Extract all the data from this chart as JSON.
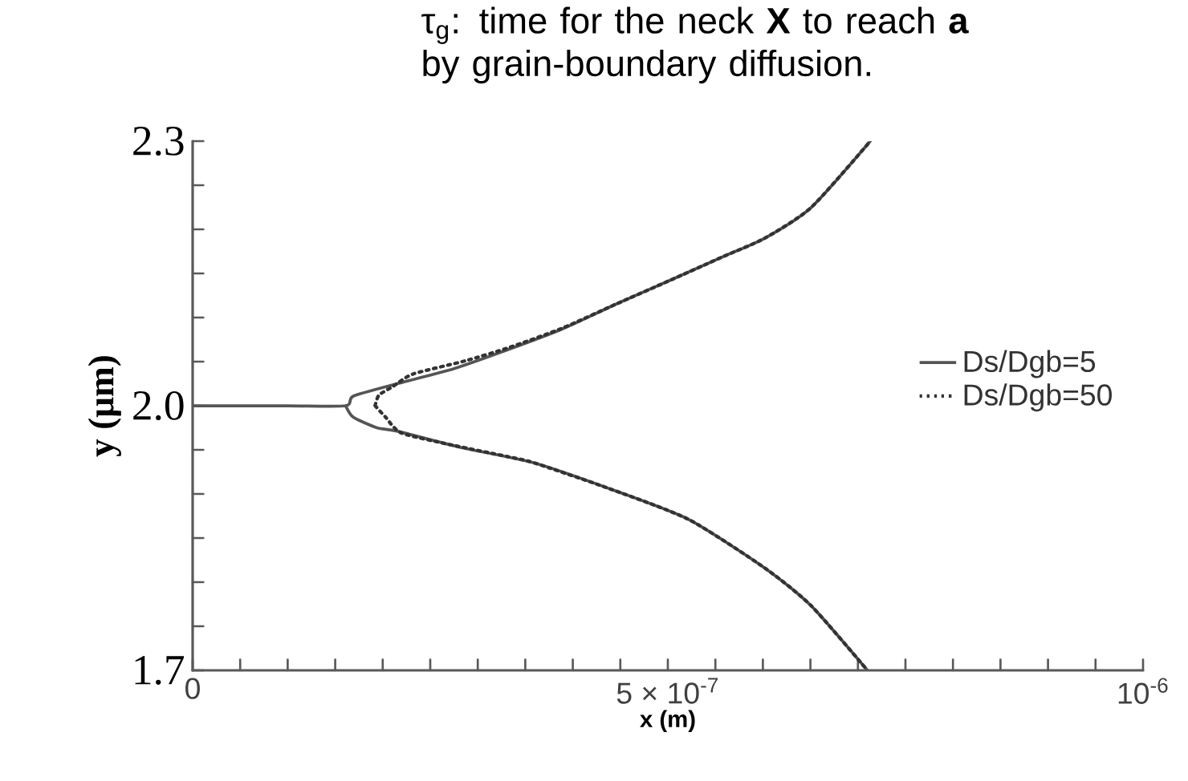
{
  "chart_data": {
    "type": "line",
    "title": "τ$_{g}$: time for the neck **X** to reach **a** by grain-boundary diffusion.",
    "xlabel": "x (m)",
    "ylabel": "y (μm)",
    "xlim": [
      0,
      1e-06
    ],
    "ylim": [
      1.7,
      2.3
    ],
    "xticks": [
      0,
      {
        "value": 5e-08,
        "label": null
      },
      {
        "value": 1e-07,
        "label": null
      },
      {
        "value": 1.5e-07,
        "label": null
      },
      {
        "value": 2e-07,
        "label": null
      },
      {
        "value": 2.5e-07,
        "label": null
      },
      {
        "value": 3e-07,
        "label": null
      },
      {
        "value": 3.5e-07,
        "label": null
      },
      {
        "value": 4e-07,
        "label": null
      },
      {
        "value": 4.5e-07,
        "label": null
      },
      {
        "value": 5e-07,
        "label": "5 × 10$^{-7}$"
      },
      {
        "value": 5.5e-07,
        "label": null
      },
      {
        "value": 6e-07,
        "label": null
      },
      {
        "value": 6.5e-07,
        "label": null
      },
      {
        "value": 7e-07,
        "label": null
      },
      {
        "value": 7.5e-07,
        "label": null
      },
      {
        "value": 8e-07,
        "label": null
      },
      {
        "value": 8.5e-07,
        "label": null
      },
      {
        "value": 9e-07,
        "label": null
      },
      {
        "value": 9.5e-07,
        "label": null
      },
      {
        "value": 1e-06,
        "label": "10$^{-6}$"
      }
    ],
    "yticks": [
      1.7,
      {
        "value": 1.75,
        "label": null
      },
      {
        "value": 1.8,
        "label": null
      },
      {
        "value": 1.85,
        "label": null
      },
      {
        "value": 1.9,
        "label": null
      },
      {
        "value": 1.95,
        "label": null
      },
      {
        "value": 2.0,
        "label": "2.0"
      },
      {
        "value": 2.05,
        "label": null
      },
      {
        "value": 2.1,
        "label": null
      },
      {
        "value": 2.15,
        "label": null
      },
      {
        "value": 2.2,
        "label": null
      },
      {
        "value": 2.25,
        "label": null
      },
      2.3
    ],
    "legend": "right",
    "grid": false,
    "series": [
      {
        "name": "Ds/Dgb=5",
        "color": "#555555",
        "line_style": "solid",
        "x": [
          0,
          1e-07,
          1.61e-07,
          1.69e-07,
          2.15e-07,
          2.75e-07,
          3.33e-07,
          3.89e-07,
          4.45e-07,
          5.02e-07,
          5.58e-07,
          6.02e-07,
          6.51e-07,
          7.13e-07,
          null,
          1.61e-07,
          1.69e-07,
          1.94e-07,
          2.16e-07,
          2.81e-07,
          3.6e-07,
          4.41e-07,
          5.22e-07,
          6.02e-07,
          6.51e-07,
          7.1e-07
        ],
        "values": [
          2.0,
          2.0,
          2.0,
          2.011,
          2.025,
          2.042,
          2.064,
          2.087,
          2.115,
          2.142,
          2.169,
          2.19,
          2.225,
          2.3,
          null,
          2.0,
          1.987,
          1.975,
          1.971,
          1.953,
          1.935,
          1.905,
          1.871,
          1.816,
          1.773,
          1.7
        ]
      },
      {
        "name": "Ds/Dgb=50",
        "color": "#333333",
        "line_style": "dotted",
        "x": [
          1.92e-07,
          1.96e-07,
          2.11e-07,
          2.32e-07,
          2.87e-07,
          3.33e-07,
          3.89e-07,
          4.45e-07,
          5.02e-07,
          5.58e-07,
          6.02e-07,
          6.51e-07,
          7.13e-07,
          null,
          1.92e-07,
          2.03e-07,
          2.2e-07,
          2.75e-07,
          3.33e-07,
          3.6e-07,
          4.41e-07,
          5.22e-07,
          6.02e-07,
          6.51e-07,
          7.1e-07
        ],
        "values": [
          2.0,
          2.012,
          2.022,
          2.036,
          2.051,
          2.066,
          2.088,
          2.115,
          2.142,
          2.169,
          2.19,
          2.225,
          2.3,
          null,
          2.0,
          1.987,
          1.969,
          1.955,
          1.942,
          1.935,
          1.905,
          1.871,
          1.816,
          1.773,
          1.7
        ]
      }
    ]
  }
}
